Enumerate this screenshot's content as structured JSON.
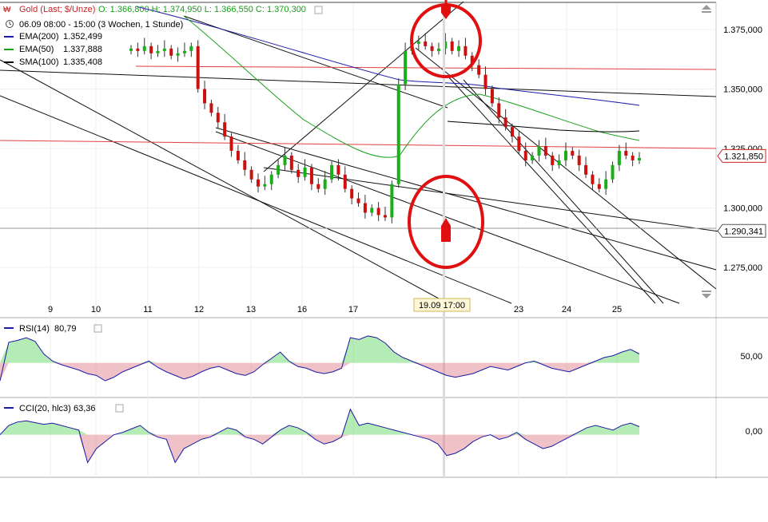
{
  "header": {
    "instrument": "Gold (Last; $/Unze)",
    "ohlc": "O: 1.366,800  H: 1.374,950  L: 1.366,550  C: 1.370,300",
    "period": "06.09 08:00 - 15:00 (3 Wochen, 1 Stunde)"
  },
  "legend": [
    {
      "label": "EMA(200)",
      "value": "1.352,499",
      "color": "#1a1aa6"
    },
    {
      "label": "EMA(50)",
      "value": "1.337,888",
      "color": "#18a018"
    },
    {
      "label": "SMA(100)",
      "value": "1.335,408",
      "color": "#000000"
    }
  ],
  "chart_data": [
    {
      "type": "candlestick",
      "title": "Gold (Last; $/Unze)",
      "x_tick_labels": [
        "9",
        "10",
        "11",
        "12",
        "13",
        "16",
        "17",
        "23",
        "24",
        "25"
      ],
      "crosshair_x_label": "19.09 17:00",
      "y_tick_labels": [
        "1.375,000",
        "1.350,000",
        "1.325,000",
        "1.300,000",
        "1.275,000"
      ],
      "ylim": [
        1257,
        1390
      ],
      "price_tags": [
        {
          "label": "1.321,850",
          "value": 1321.85,
          "color": "#cc2222"
        },
        {
          "label": "1.290,341",
          "value": 1290.34,
          "color": "#555555"
        }
      ],
      "horizontal_lines": [
        {
          "value": 1323.5,
          "color": "#e04040"
        },
        {
          "value": 1290.34,
          "color": "#888888"
        }
      ],
      "series": [
        {
          "name": "EMA(200)",
          "last": 1352.499
        },
        {
          "name": "EMA(50)",
          "last": 1337.888
        },
        {
          "name": "SMA(100)",
          "last": 1335.408
        }
      ],
      "candles_close": [
        1367,
        1366,
        1368,
        1365,
        1366,
        1367,
        1364,
        1365,
        1366,
        1368,
        1350,
        1344,
        1340,
        1336,
        1330,
        1324,
        1320,
        1316,
        1312,
        1309,
        1310,
        1314,
        1318,
        1322,
        1316,
        1313,
        1317,
        1310,
        1308,
        1312,
        1318,
        1314,
        1308,
        1304,
        1302,
        1298,
        1300,
        1297,
        1296,
        1310,
        1352,
        1366,
        1369,
        1370,
        1368,
        1366,
        1367,
        1370,
        1366,
        1368,
        1364,
        1360,
        1356,
        1350,
        1344,
        1338,
        1334,
        1330,
        1324,
        1320,
        1322,
        1326,
        1322,
        1318,
        1320,
        1324,
        1322,
        1318,
        1314,
        1310,
        1308,
        1312,
        1318,
        1324,
        1322,
        1320,
        1321
      ]
    },
    {
      "type": "line",
      "title": "RSI(14)",
      "legend_value": "80,79",
      "y_tick_labels": [
        "50,00"
      ],
      "ylim": [
        15,
        95
      ],
      "threshold": 50,
      "values": [
        30,
        73,
        75,
        78,
        74,
        60,
        52,
        48,
        45,
        42,
        38,
        36,
        30,
        34,
        40,
        44,
        48,
        52,
        45,
        40,
        36,
        32,
        35,
        40,
        44,
        46,
        42,
        38,
        36,
        40,
        48,
        55,
        62,
        52,
        46,
        44,
        40,
        38,
        40,
        44,
        78,
        76,
        80,
        78,
        72,
        62,
        56,
        52,
        48,
        44,
        40,
        36,
        34,
        36,
        38,
        42,
        46,
        44,
        42,
        46,
        50,
        52,
        48,
        44,
        42,
        40,
        44,
        48,
        52,
        56,
        58,
        62,
        65,
        60
      ]
    },
    {
      "type": "line",
      "title": "CCI(20, hlc3)",
      "legend_value": "63,36",
      "y_tick_labels": [
        "0,00"
      ],
      "ylim": [
        -170,
        140
      ],
      "threshold": 0,
      "values": [
        0,
        40,
        55,
        60,
        52,
        45,
        50,
        40,
        30,
        20,
        -120,
        -60,
        -30,
        0,
        10,
        25,
        40,
        10,
        -10,
        -20,
        -120,
        -60,
        -40,
        -20,
        -10,
        10,
        30,
        20,
        -10,
        -20,
        -40,
        -10,
        20,
        40,
        30,
        10,
        -20,
        -40,
        -30,
        -10,
        110,
        40,
        50,
        40,
        30,
        20,
        10,
        0,
        -10,
        -20,
        -40,
        -90,
        -80,
        -60,
        -30,
        -10,
        0,
        -20,
        -10,
        10,
        -20,
        -40,
        -60,
        -50,
        -30,
        -10,
        10,
        30,
        40,
        30,
        20,
        40,
        50,
        35
      ]
    }
  ],
  "annotations": {
    "circle_color": "#e01010"
  }
}
